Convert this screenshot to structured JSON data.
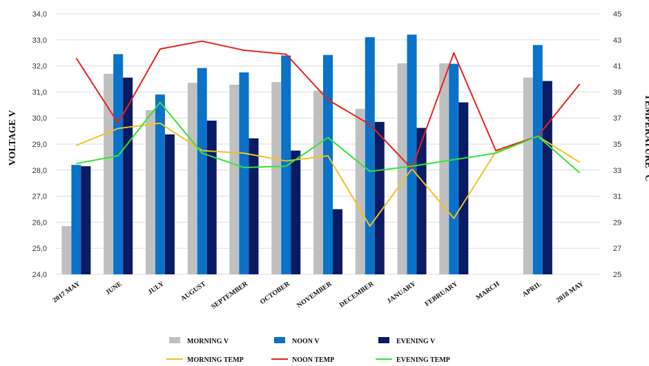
{
  "chart_data": {
    "type": "bar",
    "categories": [
      "2017 MAY",
      "JUNE",
      "JULY",
      "AUGUST",
      "SEPTEMBER",
      "OCTOBER",
      "NOVEMBER",
      "DECEMBER",
      "JANUARY",
      "FEBRUARY",
      "MARCH",
      "APRIL",
      "2018 MAY"
    ],
    "ylabel": "VOLTAGE V",
    "y2label": "TEMPERATURE °C",
    "ylim": [
      24.0,
      34.0
    ],
    "y2lim": [
      25,
      45
    ],
    "yticks": [
      "24,0",
      "25,0",
      "26,0",
      "27,0",
      "28,0",
      "29,0",
      "30,0",
      "31,0",
      "32,0",
      "33,0",
      "34,0"
    ],
    "y2ticks": [
      "25",
      "27",
      "29",
      "31",
      "33",
      "35",
      "37",
      "39",
      "41",
      "43",
      "45"
    ],
    "grid": true,
    "legend_position": "bottom",
    "bar_series": [
      {
        "name": "MORNING V",
        "color": "#c0c0c0",
        "values": [
          25.85,
          31.7,
          30.3,
          31.35,
          31.28,
          31.38,
          31.05,
          30.35,
          32.1,
          32.1,
          null,
          31.55,
          null
        ]
      },
      {
        "name": "NOON V",
        "color": "#0a72c8",
        "values": [
          28.2,
          32.45,
          30.9,
          31.92,
          31.75,
          32.4,
          32.42,
          33.1,
          33.2,
          32.08,
          null,
          32.8,
          null
        ]
      },
      {
        "name": "EVENING V",
        "color": "#0b1b63",
        "values": [
          28.15,
          31.55,
          29.37,
          29.9,
          29.22,
          28.75,
          26.5,
          29.85,
          29.62,
          30.6,
          null,
          31.42,
          null
        ]
      }
    ],
    "line_series": [
      {
        "name": "MORNING TEMP",
        "color": "#f4c020",
        "values": [
          34.9,
          36.2,
          36.6,
          34.5,
          34.3,
          33.7,
          34.1,
          28.7,
          33.1,
          29.3,
          34.4,
          35.6,
          33.6
        ]
      },
      {
        "name": "NOON TEMP",
        "color": "#e8211d",
        "values": [
          41.6,
          36.6,
          42.3,
          42.9,
          42.2,
          41.9,
          38.4,
          36.5,
          33.1,
          42.0,
          34.5,
          35.6,
          39.6
        ]
      },
      {
        "name": "EVENING TEMP",
        "color": "#35e335",
        "values": [
          33.5,
          34.1,
          38.2,
          34.3,
          33.2,
          33.3,
          35.5,
          32.9,
          33.3,
          33.8,
          34.3,
          35.6,
          32.8
        ]
      }
    ]
  }
}
